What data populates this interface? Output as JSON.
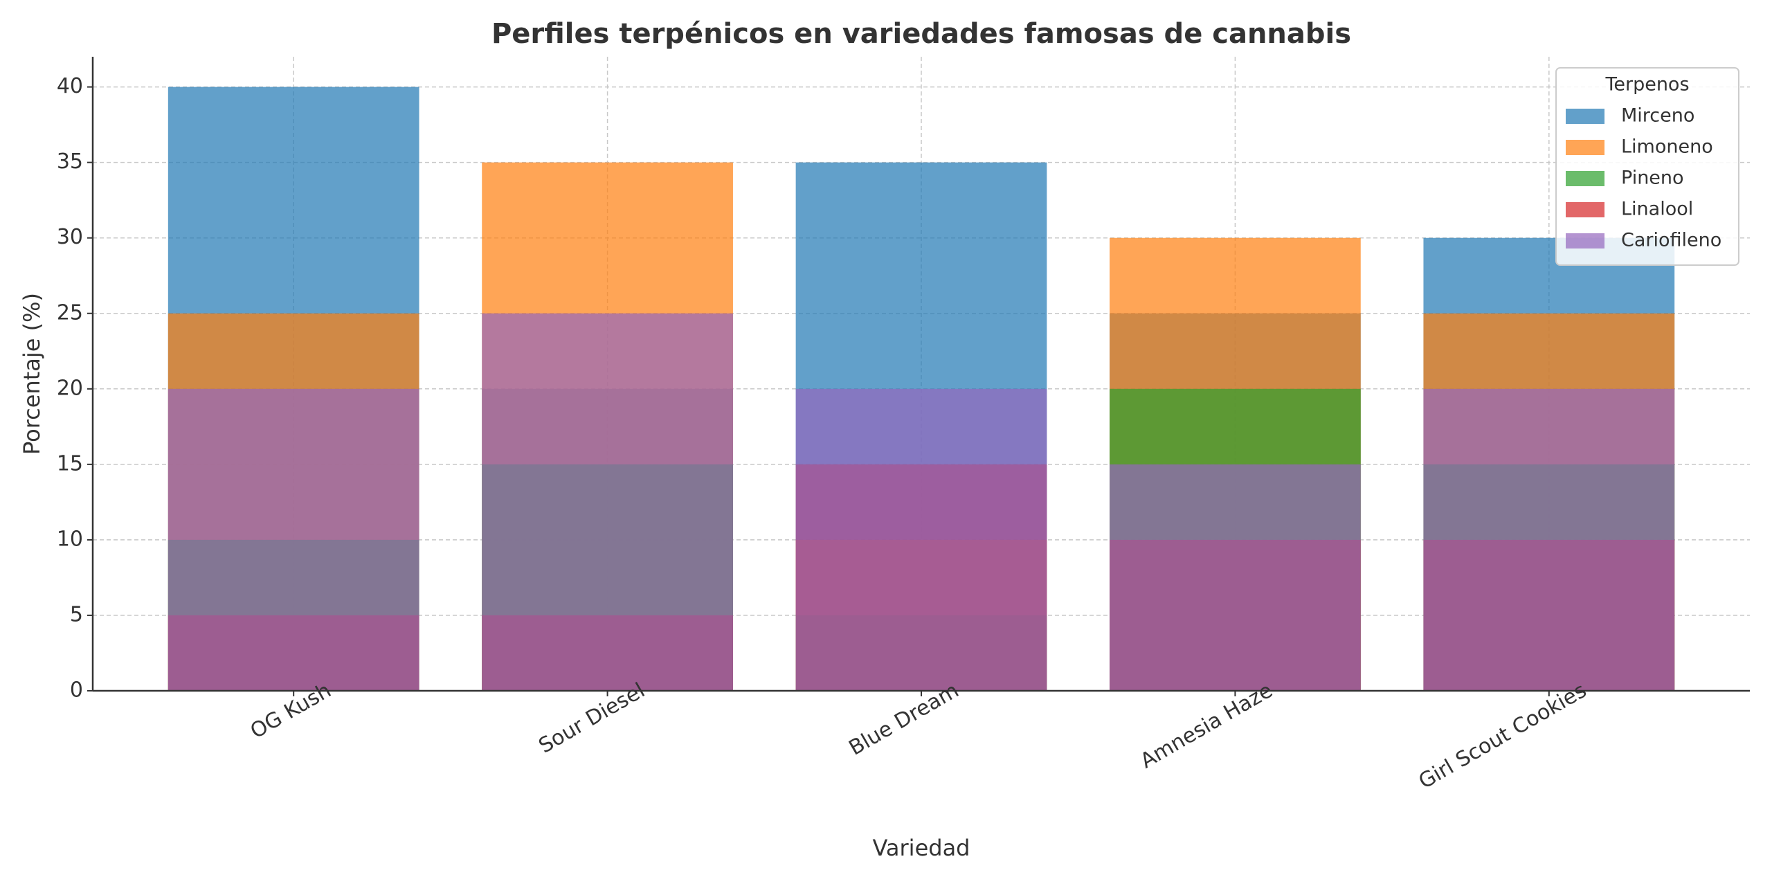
{
  "chart_data": {
    "type": "overlap_bar",
    "title": "Perfiles terpénicos en variedades famosas de cannabis",
    "x_label": "Variedad",
    "y_label": "Porcentaje (%)",
    "categories": [
      "OG Kush",
      "Sour Diesel",
      "Blue Dream",
      "Amnesia Haze",
      "Girl Scout Cookies"
    ],
    "series": [
      {
        "name": "Mirceno",
        "color": "#1f77b4",
        "values": [
          40,
          20,
          35,
          25,
          30
        ]
      },
      {
        "name": "Limoneno",
        "color": "#ff7f0e",
        "values": [
          25,
          35,
          10,
          30,
          25
        ]
      },
      {
        "name": "Pineno",
        "color": "#2ca02c",
        "values": [
          10,
          15,
          5,
          20,
          15
        ]
      },
      {
        "name": "Linalool",
        "color": "#d62728",
        "values": [
          5,
          5,
          15,
          10,
          10
        ]
      },
      {
        "name": "Cariofileno",
        "color": "#9467bd",
        "values": [
          20,
          25,
          20,
          15,
          20
        ]
      }
    ],
    "legend_title": "Terpenos",
    "legend_position": "upper right",
    "ylim": [
      0,
      42
    ],
    "yticks": [
      0,
      5,
      10,
      15,
      20,
      25,
      30,
      35,
      40
    ],
    "grid": true
  }
}
